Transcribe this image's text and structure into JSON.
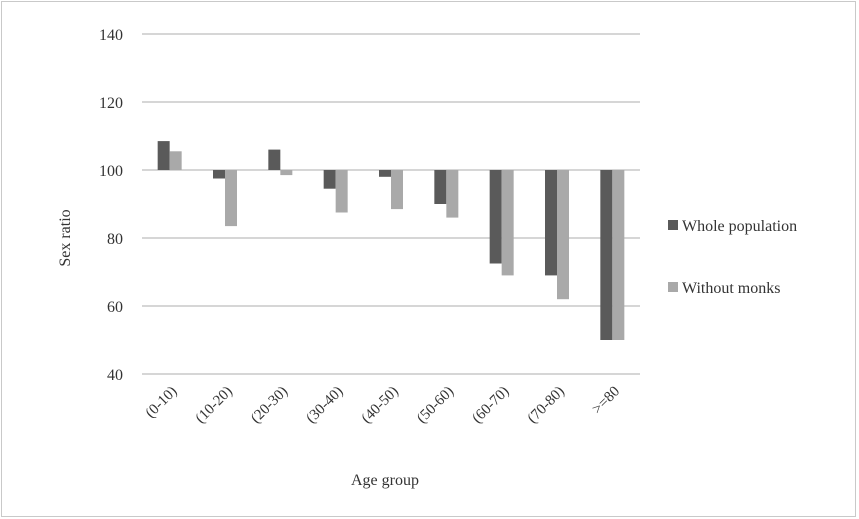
{
  "chart_data": {
    "type": "bar",
    "title": "",
    "xlabel": "Age group",
    "ylabel": "Sex ratio",
    "ylim": [
      40,
      140
    ],
    "yticks": [
      40,
      60,
      80,
      100,
      120,
      140
    ],
    "baseline": 100,
    "grid": true,
    "legend_position": "right",
    "categories": [
      "(0-10)",
      "(10-20)",
      "(20-30)",
      "(30-40)",
      "(40-50)",
      "(50-60)",
      "(60-70)",
      "(70-80)",
      ">=80"
    ],
    "series": [
      {
        "name": "Whole population",
        "color": "#5a5a5a",
        "values": [
          108.5,
          97.5,
          106,
          94.5,
          98,
          90,
          72.5,
          69,
          50
        ]
      },
      {
        "name": "Without monks",
        "color": "#a9a9a9",
        "values": [
          105.5,
          83.5,
          98.5,
          87.5,
          88.5,
          86,
          69,
          62,
          50
        ]
      }
    ]
  }
}
